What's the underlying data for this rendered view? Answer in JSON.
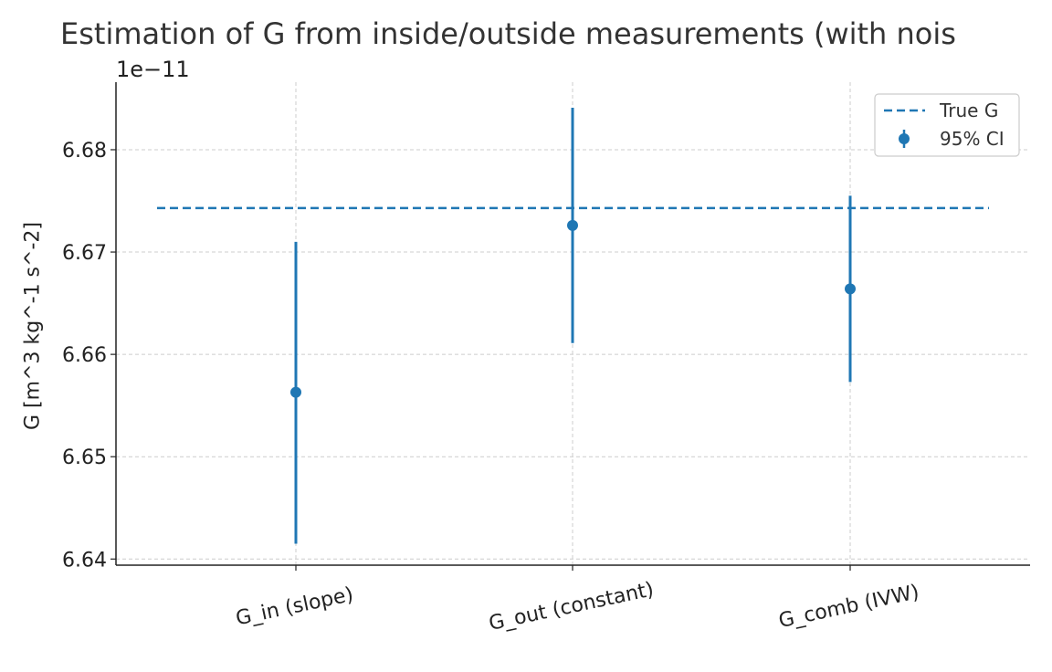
{
  "chart_data": {
    "type": "errorbar",
    "title": "Estimation of G from inside/outside measurements (with nois",
    "ylabel": "G [m^3 kg^-1 s^-2]",
    "y_offset_label": "1e−11",
    "categories": [
      "G_in (slope)",
      "G_out (constant)",
      "G_comb (IVW)"
    ],
    "series": [
      {
        "name": "95% CI",
        "values": [
          6.6563,
          6.6726,
          6.6664
        ],
        "lower": [
          6.6415,
          6.6611,
          6.6573
        ],
        "upper": [
          6.671,
          6.6841,
          6.6755
        ],
        "color": "#1f77b4"
      }
    ],
    "reference_line": {
      "name": "True G",
      "value": 6.6743,
      "style": "dashed",
      "color": "#1f77b4"
    },
    "yticks": [
      "6.64",
      "6.65",
      "6.66",
      "6.67",
      "6.68"
    ],
    "ylim": [
      6.6394,
      6.6866
    ],
    "grid": true,
    "legend_position": "top-right"
  }
}
